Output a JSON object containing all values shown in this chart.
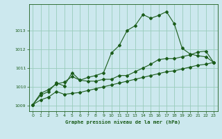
{
  "title": "Graphe pression niveau de la mer (hPa)",
  "bg_color": "#cce8ee",
  "grid_color": "#99ccbb",
  "line_color": "#1a5c1a",
  "xlim": [
    -0.5,
    23.5
  ],
  "ylim": [
    1008.7,
    1014.4
  ],
  "yticks": [
    1009,
    1010,
    1011,
    1012,
    1013
  ],
  "xticks": [
    0,
    1,
    2,
    3,
    4,
    5,
    6,
    7,
    8,
    9,
    10,
    11,
    12,
    13,
    14,
    15,
    16,
    17,
    18,
    19,
    20,
    21,
    22,
    23
  ],
  "series1_x": [
    0,
    1,
    2,
    3,
    4,
    5,
    6,
    7,
    8,
    9,
    10,
    11,
    12,
    13,
    14,
    15,
    16,
    17,
    18,
    19,
    20,
    21,
    22,
    23
  ],
  "series1_y": [
    1009.05,
    1009.65,
    1009.85,
    1010.15,
    1010.25,
    1010.55,
    1010.35,
    1010.5,
    1010.6,
    1010.75,
    1011.8,
    1012.2,
    1013.0,
    1013.25,
    1013.85,
    1013.65,
    1013.8,
    1014.0,
    1013.35,
    1012.05,
    1011.75,
    1011.65,
    1011.6,
    1011.3
  ],
  "series2_x": [
    0,
    1,
    2,
    3,
    4,
    5,
    6,
    7,
    8,
    9,
    10,
    11,
    12,
    13,
    14,
    15,
    16,
    17,
    18,
    19,
    20,
    21,
    22,
    23
  ],
  "series2_y": [
    1009.05,
    1009.55,
    1009.75,
    1010.2,
    1010.05,
    1010.75,
    1010.35,
    1010.3,
    1010.3,
    1010.4,
    1010.4,
    1010.6,
    1010.6,
    1010.8,
    1011.0,
    1011.2,
    1011.45,
    1011.5,
    1011.5,
    1011.6,
    1011.7,
    1011.85,
    1011.9,
    1011.3
  ],
  "series3_x": [
    0,
    1,
    2,
    3,
    4,
    5,
    6,
    7,
    8,
    9,
    10,
    11,
    12,
    13,
    14,
    15,
    16,
    17,
    18,
    19,
    20,
    21,
    22,
    23
  ],
  "series3_y": [
    1009.05,
    1009.3,
    1009.45,
    1009.75,
    1009.6,
    1009.65,
    1009.7,
    1009.8,
    1009.9,
    1010.0,
    1010.1,
    1010.2,
    1010.3,
    1010.4,
    1010.5,
    1010.6,
    1010.7,
    1010.8,
    1010.85,
    1010.95,
    1011.05,
    1011.15,
    1011.2,
    1011.3
  ]
}
